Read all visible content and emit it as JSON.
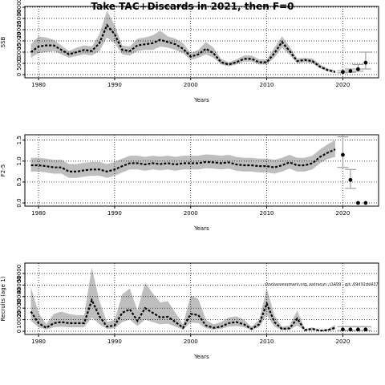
{
  "title": "Take TAC+Discards in 2021, then F=0",
  "chart_data": [
    {
      "type": "line",
      "ylabel": "SSB",
      "xlabel": "Years",
      "grid": true,
      "color": "#000000",
      "band_color": "#bebebe",
      "error_color": "#a0a0a0",
      "xlim": [
        1978.2,
        2024.7
      ],
      "xticks": [
        1980,
        1990,
        2000,
        2010,
        2020
      ],
      "ylim": [
        -1430,
        30360
      ],
      "yticks": [
        0,
        5000,
        10000,
        15000,
        20000,
        25000,
        30000
      ],
      "x": [
        1979,
        1980,
        1981,
        1982,
        1983,
        1984,
        1985,
        1986,
        1987,
        1988,
        1989,
        1990,
        1991,
        1992,
        1993,
        1994,
        1995,
        1996,
        1997,
        1998,
        1999,
        2000,
        2001,
        2002,
        2003,
        2004,
        2005,
        2006,
        2007,
        2008,
        2009,
        2010,
        2011,
        2012,
        2013,
        2014,
        2015,
        2016,
        2017,
        2018,
        2019
      ],
      "values": [
        10000,
        12500,
        13000,
        13000,
        11000,
        9000,
        10000,
        11000,
        10500,
        14000,
        22000,
        18000,
        11000,
        10500,
        13000,
        13500,
        14000,
        15500,
        14500,
        13500,
        11500,
        8000,
        9000,
        11500,
        9500,
        5500,
        4500,
        5500,
        7000,
        7000,
        5500,
        5500,
        9500,
        14500,
        10500,
        6000,
        6500,
        6000,
        3500,
        2000,
        1200
      ],
      "band_upper": [
        13500,
        17000,
        16500,
        15500,
        13000,
        10500,
        12000,
        13000,
        12500,
        18000,
        28500,
        22000,
        13000,
        12500,
        16000,
        16500,
        17500,
        19500,
        17000,
        16000,
        14000,
        9500,
        11000,
        14500,
        12000,
        7000,
        5500,
        6800,
        8500,
        8500,
        6800,
        6800,
        12000,
        17000,
        12500,
        7200,
        7500,
        7200,
        4500,
        2800,
        1800
      ],
      "band_lower": [
        7500,
        9500,
        10000,
        10500,
        9000,
        7500,
        8200,
        9000,
        8500,
        10500,
        16500,
        14000,
        9000,
        8500,
        10500,
        11000,
        11000,
        12500,
        12000,
        11000,
        9500,
        6500,
        7500,
        9000,
        7500,
        4500,
        3700,
        4500,
        5800,
        5800,
        4500,
        4500,
        7500,
        12000,
        8800,
        5000,
        5500,
        5000,
        2800,
        1400,
        700
      ],
      "proj_x": [
        2020,
        2021,
        2022,
        2023
      ],
      "proj_values": [
        1200,
        1600,
        2400,
        5300
      ],
      "proj_low": [
        800,
        1000,
        1500,
        2500
      ],
      "proj_high": [
        1700,
        2500,
        4500,
        10000
      ]
    },
    {
      "type": "line",
      "ylabel": "F2-5",
      "xlabel": "Years",
      "grid": true,
      "color": "#000000",
      "band_color": "#bebebe",
      "error_color": "#a0a0a0",
      "xlim": [
        1978.2,
        2024.7
      ],
      "xticks": [
        1980,
        1990,
        2000,
        2010,
        2020
      ],
      "ylim": [
        -0.076,
        1.63
      ],
      "yticks": [
        {
          "value": 0,
          "label": "0.0"
        },
        {
          "value": 0.5,
          "label": "0.5"
        },
        {
          "value": 1,
          "label": "1.0"
        },
        1.5
      ],
      "x": [
        1979,
        1980,
        1981,
        1982,
        1983,
        1984,
        1985,
        1986,
        1987,
        1988,
        1989,
        1990,
        1991,
        1992,
        1993,
        1994,
        1995,
        1996,
        1997,
        1998,
        1999,
        2000,
        2001,
        2002,
        2003,
        2004,
        2005,
        2006,
        2007,
        2008,
        2009,
        2010,
        2011,
        2012,
        2013,
        2014,
        2015,
        2016,
        2017,
        2018,
        2019
      ],
      "values": [
        0.9,
        0.9,
        0.88,
        0.85,
        0.85,
        0.75,
        0.75,
        0.78,
        0.8,
        0.8,
        0.75,
        0.8,
        0.88,
        0.95,
        0.95,
        0.92,
        0.95,
        0.93,
        0.95,
        0.92,
        0.95,
        0.95,
        0.95,
        0.98,
        0.97,
        0.95,
        0.97,
        0.92,
        0.9,
        0.9,
        0.88,
        0.88,
        0.85,
        0.9,
        0.97,
        0.9,
        0.9,
        0.95,
        1.1,
        1.2,
        1.28
      ],
      "band_upper": [
        1.08,
        1.08,
        1.06,
        1.03,
        1.03,
        0.93,
        0.93,
        0.96,
        0.98,
        0.98,
        0.93,
        0.98,
        1.06,
        1.13,
        1.13,
        1.1,
        1.13,
        1.11,
        1.13,
        1.1,
        1.13,
        1.13,
        1.13,
        1.16,
        1.15,
        1.13,
        1.15,
        1.1,
        1.08,
        1.08,
        1.06,
        1.06,
        1.03,
        1.08,
        1.15,
        1.08,
        1.08,
        1.13,
        1.28,
        1.4,
        1.5
      ],
      "band_lower": [
        0.75,
        0.75,
        0.73,
        0.7,
        0.7,
        0.6,
        0.6,
        0.63,
        0.65,
        0.65,
        0.6,
        0.65,
        0.73,
        0.8,
        0.8,
        0.77,
        0.8,
        0.78,
        0.8,
        0.77,
        0.8,
        0.8,
        0.8,
        0.83,
        0.82,
        0.8,
        0.82,
        0.77,
        0.75,
        0.75,
        0.73,
        0.73,
        0.7,
        0.75,
        0.82,
        0.75,
        0.75,
        0.8,
        0.95,
        1.05,
        1.1
      ],
      "proj_x": [
        2020,
        2021,
        2022,
        2023
      ],
      "proj_values": [
        1.15,
        0.55,
        0,
        0
      ],
      "proj_low": [
        0.85,
        0.35,
        0,
        0
      ],
      "proj_high": [
        1.58,
        0.8,
        0,
        0
      ]
    },
    {
      "type": "line",
      "ylabel": "Recruits (age 1)",
      "xlabel": "Years",
      "grid": true,
      "color": "#000000",
      "band_color": "#bebebe",
      "error_color": "#a0a0a0",
      "annotation": "stockassessment.org, extrarun: t1499 - git: 69d92dd437",
      "xlim": [
        1978.2,
        2024.7
      ],
      "xticks": [
        1980,
        1990,
        2000,
        2010,
        2020
      ],
      "ylim": [
        -2780,
        59000
      ],
      "yticks": [
        0,
        10000,
        20000,
        30000,
        40000,
        50000
      ],
      "x": [
        1979,
        1980,
        1981,
        1982,
        1983,
        1984,
        1985,
        1986,
        1987,
        1988,
        1989,
        1990,
        1991,
        1992,
        1993,
        1994,
        1995,
        1996,
        1997,
        1998,
        1999,
        2000,
        2001,
        2002,
        2003,
        2004,
        2005,
        2006,
        2007,
        2008,
        2009,
        2010,
        2011,
        2012,
        2013,
        2014,
        2015,
        2016,
        2017,
        2018,
        2019
      ],
      "values": [
        17000,
        7000,
        3000,
        7000,
        8000,
        7000,
        7000,
        7000,
        27000,
        13000,
        4000,
        5000,
        16000,
        19000,
        9000,
        20000,
        16000,
        12000,
        12500,
        8000,
        3000,
        15000,
        14000,
        5000,
        3000,
        4000,
        7000,
        8000,
        6000,
        2000,
        6000,
        24000,
        8000,
        2000,
        2500,
        11000,
        1000,
        2000,
        500,
        1000,
        3000
      ],
      "band_upper": [
        38000,
        16000,
        6000,
        15000,
        17000,
        15000,
        14000,
        14000,
        55000,
        26000,
        8000,
        10000,
        32000,
        37000,
        18000,
        42000,
        33000,
        25000,
        26000,
        16000,
        6000,
        31000,
        28000,
        10000,
        6000,
        8000,
        12000,
        13000,
        10000,
        4000,
        10000,
        37000,
        14000,
        4000,
        5000,
        18000,
        2000,
        3500,
        1000,
        2000,
        5500
      ],
      "band_lower": [
        9000,
        3500,
        1500,
        3500,
        4000,
        3500,
        3500,
        3500,
        12000,
        6000,
        2000,
        2500,
        8000,
        10000,
        4500,
        10000,
        8000,
        6000,
        6500,
        4000,
        1500,
        7500,
        7000,
        2500,
        1500,
        2000,
        4000,
        4500,
        3500,
        1000,
        3500,
        14000,
        4000,
        1000,
        1300,
        5000,
        500,
        1000,
        250,
        500,
        1500
      ],
      "proj_x": [
        2020,
        2021,
        2022,
        2023
      ],
      "proj_values": [
        1500,
        1500,
        1500,
        1500
      ],
      "proj_low": [
        700,
        700,
        700,
        700
      ],
      "proj_high": [
        4000,
        4000,
        4000,
        4000
      ]
    }
  ]
}
